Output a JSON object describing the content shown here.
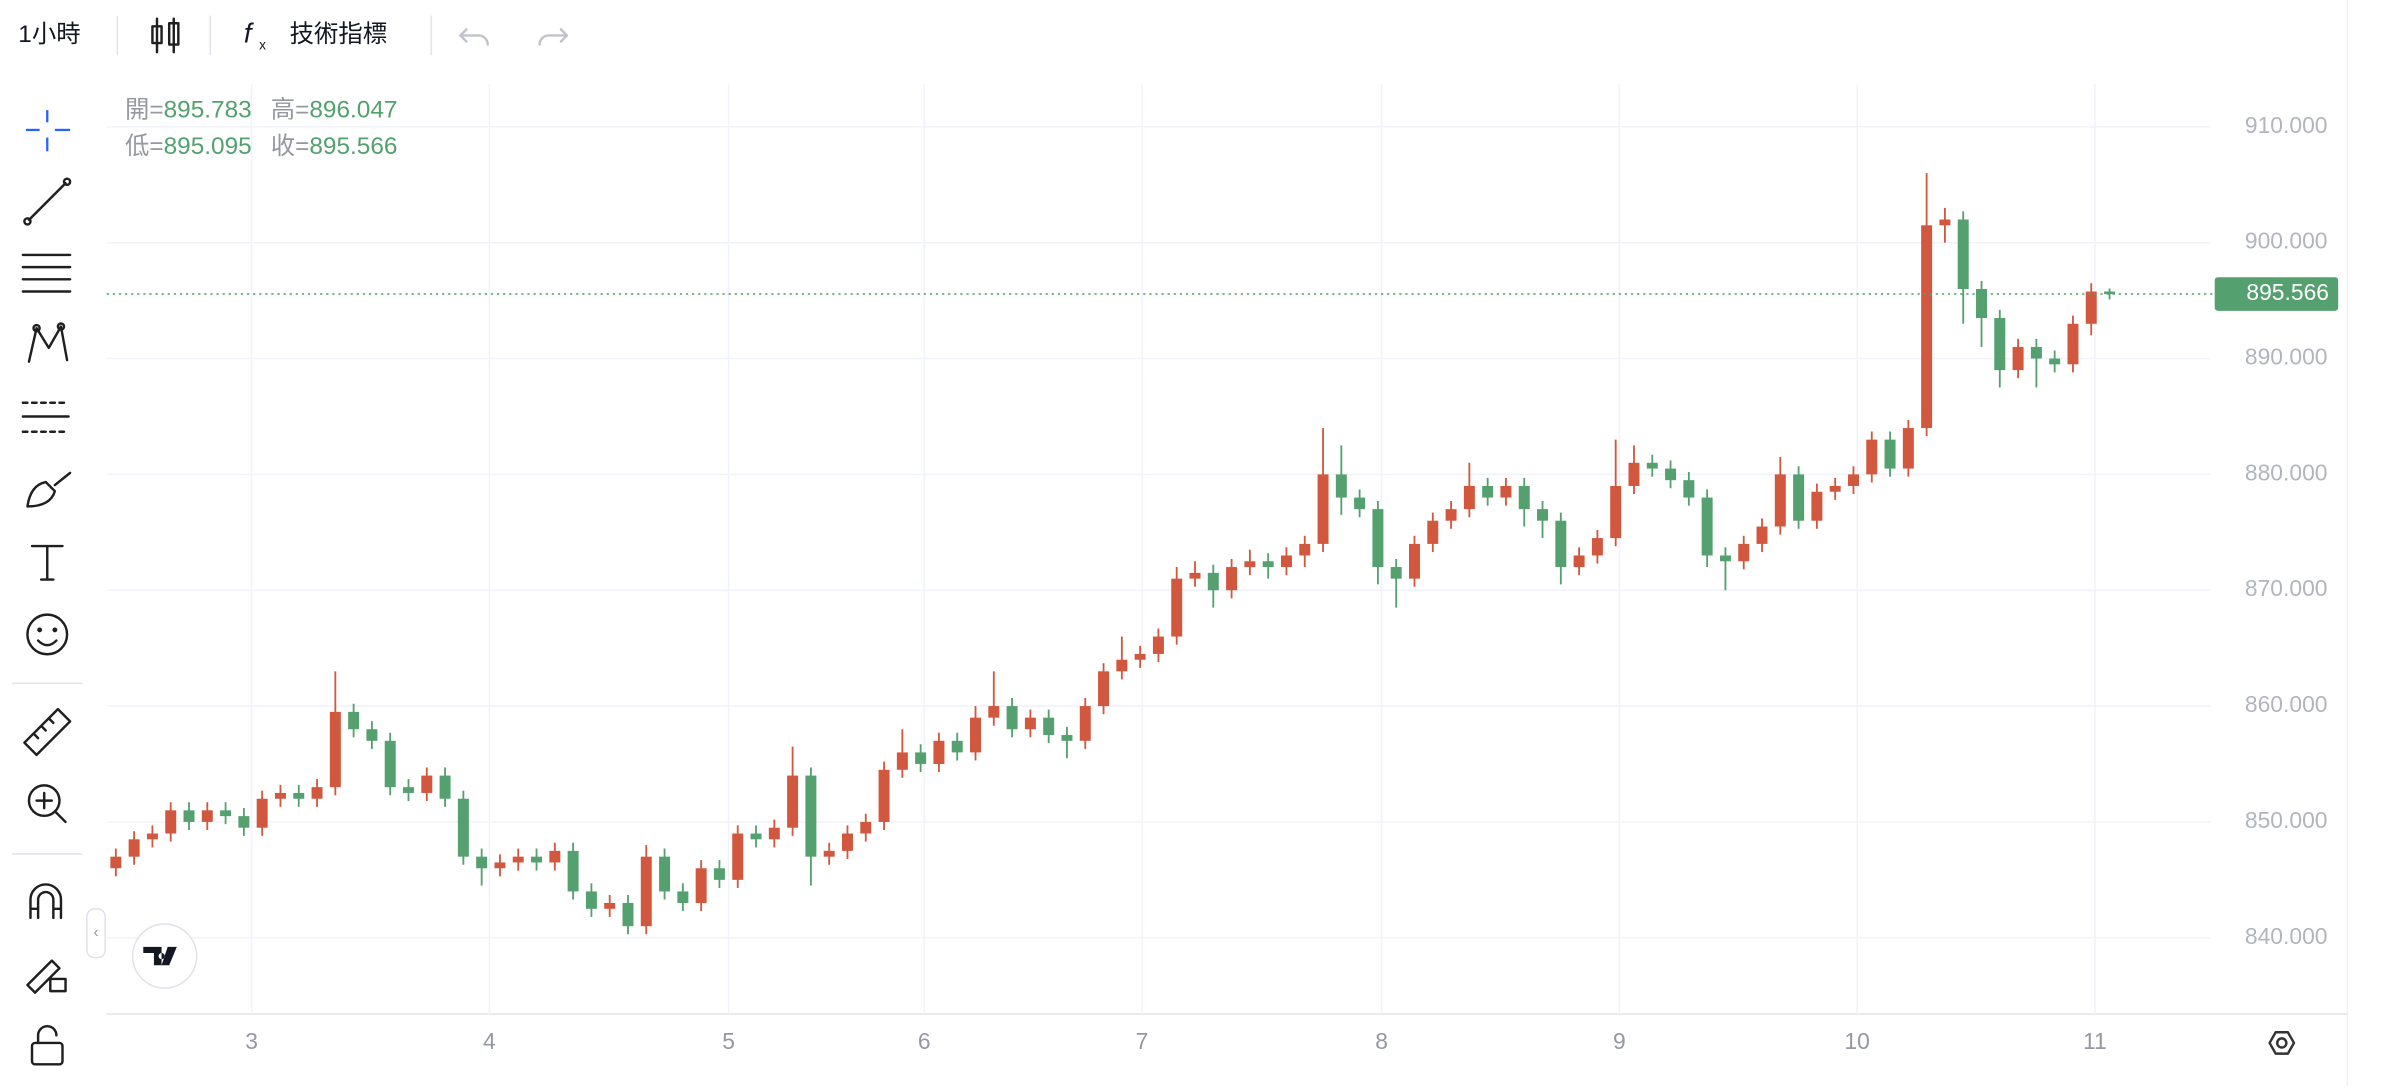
{
  "toolbar": {
    "interval": "1小時",
    "indicators": "技術指標"
  },
  "chart_data": {
    "type": "candlestick",
    "legend_labels": {
      "open": "開=",
      "high": "高=",
      "low": "低=",
      "close": "收="
    },
    "up_color": "#d1583e",
    "down_color": "#54a06f",
    "open": [
      846,
      847,
      848.5,
      849,
      851,
      850,
      851,
      850.5,
      849.5,
      852,
      852.5,
      852,
      853,
      859.5,
      858,
      857,
      853,
      852.5,
      854,
      852,
      847,
      846,
      846.5,
      847,
      846.5,
      847.5,
      844,
      842.5,
      843,
      841,
      847,
      844,
      843,
      846,
      845,
      849,
      848.5,
      849.5,
      854,
      847,
      847.5,
      849,
      850,
      854.5,
      856,
      855,
      857,
      856,
      859,
      860,
      858,
      859,
      857.5,
      857,
      860,
      863,
      864,
      864.5,
      866,
      871,
      871.5,
      870,
      872,
      872.5,
      872,
      873,
      874,
      880,
      878,
      877,
      872,
      871,
      874,
      876,
      877,
      879,
      878,
      879,
      877,
      876,
      872,
      873,
      874.5,
      879,
      881,
      880.5,
      879.5,
      878,
      873,
      872.5,
      874,
      875.5,
      880,
      876,
      878.5,
      879,
      880,
      883,
      880.5,
      884,
      901.5,
      902,
      896,
      893.5,
      889,
      891,
      890,
      889.5,
      893,
      895.783
    ],
    "high": [
      847.7,
      849.2,
      849.7,
      851.7,
      851.7,
      851.7,
      851.7,
      851.2,
      852.7,
      853.2,
      853.2,
      853.7,
      863,
      860.2,
      858.7,
      857.7,
      853.7,
      854.7,
      854.7,
      852.7,
      847.7,
      847.2,
      847.7,
      847.7,
      848.2,
      848.2,
      844.7,
      843.7,
      843.7,
      848,
      847.7,
      844.7,
      846.7,
      846.7,
      849.7,
      849.7,
      850.2,
      856.5,
      854.7,
      848.2,
      849.7,
      850.7,
      855.2,
      858,
      856.7,
      857.7,
      857.7,
      860,
      863,
      860.7,
      859.7,
      859.7,
      858.2,
      860.7,
      863.7,
      866,
      865.2,
      866.7,
      872,
      872.5,
      872.2,
      872.7,
      873.5,
      873.2,
      873.7,
      874.7,
      884,
      882.5,
      878.7,
      877.7,
      872.7,
      874.7,
      876.7,
      877.7,
      881,
      879.7,
      879.7,
      879.7,
      877.7,
      876.7,
      873.7,
      875.2,
      883,
      882.5,
      881.7,
      881.2,
      880.2,
      878.7,
      873.7,
      874.7,
      876.2,
      881.5,
      880.7,
      879.2,
      879.7,
      880.7,
      883.7,
      883.7,
      884.7,
      906,
      903,
      902.7,
      896.7,
      894.2,
      891.7,
      891.7,
      890.7,
      893.7,
      896.5,
      896.047
    ],
    "low": [
      845.3,
      846.3,
      847.8,
      848.3,
      849.3,
      849.3,
      849.8,
      848.8,
      848.8,
      851.3,
      851.3,
      851.3,
      852.3,
      857.3,
      856.3,
      852.3,
      851.8,
      851.8,
      851.3,
      846.3,
      844.5,
      845.3,
      845.8,
      845.8,
      845.8,
      843.3,
      841.8,
      841.8,
      840.3,
      840.3,
      843.3,
      842.3,
      842.3,
      844.3,
      844.3,
      847.8,
      847.8,
      848.8,
      844.5,
      846.3,
      846.8,
      848.3,
      849.3,
      853.8,
      854.3,
      854.3,
      855.3,
      855.3,
      858.3,
      857.3,
      857.3,
      856.8,
      855.5,
      856.3,
      859.3,
      862.3,
      863.3,
      863.8,
      865.3,
      870.3,
      868.5,
      869.3,
      871.3,
      871,
      871.3,
      872,
      873.3,
      876.5,
      876.3,
      870.5,
      868.5,
      870.3,
      873.3,
      875.3,
      876.3,
      877.3,
      877.3,
      875.5,
      874.5,
      870.5,
      871.3,
      872.3,
      873.8,
      878.3,
      879.8,
      878.8,
      877.3,
      872,
      870,
      871.8,
      873.3,
      874.8,
      875.3,
      875.3,
      877.8,
      878.3,
      879.3,
      879.8,
      879.8,
      883.3,
      900,
      893,
      891,
      887.5,
      888.3,
      887.5,
      888.8,
      888.8,
      892,
      895.095
    ],
    "close": [
      847,
      848.5,
      849,
      851,
      850,
      851,
      850.5,
      849.5,
      852,
      852.5,
      852,
      853,
      859.5,
      858,
      857,
      853,
      852.5,
      854,
      852,
      847,
      846,
      846.5,
      847,
      846.5,
      847.5,
      844,
      842.5,
      843,
      841,
      847,
      844,
      843,
      846,
      845,
      849,
      848.5,
      849.5,
      854,
      847,
      847.5,
      849,
      850,
      854.5,
      856,
      855,
      857,
      856,
      859,
      860,
      858,
      859,
      857.5,
      857,
      860,
      863,
      864,
      864.5,
      866,
      871,
      871.5,
      870,
      872,
      872.5,
      872,
      873,
      874,
      880,
      878,
      877,
      872,
      871,
      874,
      876,
      877,
      879,
      878,
      879,
      877,
      876,
      872,
      873,
      874.5,
      879,
      881,
      880.5,
      879.5,
      878,
      873,
      872.5,
      874,
      875.5,
      880,
      876,
      878.5,
      879,
      880,
      883,
      880.5,
      884,
      901.5,
      902,
      896,
      893.5,
      889,
      891,
      890,
      889.5,
      893,
      895.783,
      895.566
    ],
    "xlim": [
      -0.5,
      114.5
    ],
    "xticks": [
      {
        "value": 7.42,
        "label": "3"
      },
      {
        "value": 20.42,
        "label": "4"
      },
      {
        "value": 33.5,
        "label": "5"
      },
      {
        "value": 44.2,
        "label": "6"
      },
      {
        "value": 56.1,
        "label": "7"
      },
      {
        "value": 69.2,
        "label": "8"
      },
      {
        "value": 82.2,
        "label": "9"
      },
      {
        "value": 95.2,
        "label": "10"
      },
      {
        "value": 108.2,
        "label": "11"
      }
    ],
    "ylim": [
      833.42,
      913.68
    ],
    "yticks": [
      {
        "value": 840,
        "label": "840.000"
      },
      {
        "value": 850,
        "label": "850.000"
      },
      {
        "value": 860,
        "label": "860.000"
      },
      {
        "value": 870,
        "label": "870.000"
      },
      {
        "value": 880,
        "label": "880.000"
      },
      {
        "value": 890,
        "label": "890.000"
      },
      {
        "value": 900,
        "label": "900.000"
      },
      {
        "value": 910,
        "label": "910.000"
      }
    ],
    "grid": true
  }
}
